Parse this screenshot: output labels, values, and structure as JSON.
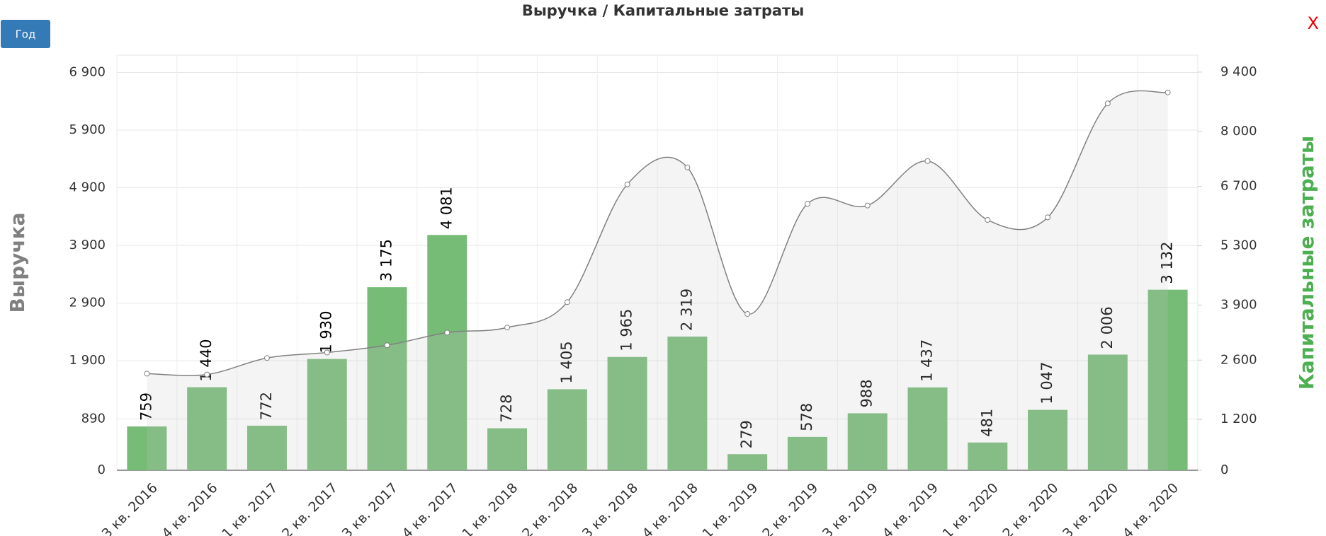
{
  "chart_data": {
    "type": "bar-line",
    "title": "Выручка / Капитальные затраты",
    "ylabel": "Выручка",
    "y2label": "Капитальные затраты",
    "button": "Год",
    "close": "X",
    "categories": [
      "3 кв. 2016",
      "4 кв. 2016",
      "1 кв. 2017",
      "2 кв. 2017",
      "3 кв. 2017",
      "4 кв. 2017",
      "1 кв. 2018",
      "2 кв. 2018",
      "3 кв. 2018",
      "4 кв. 2018",
      "1 кв. 2019",
      "2 кв. 2019",
      "3 кв. 2019",
      "4 кв. 2019",
      "1 кв. 2020",
      "2 кв. 2020",
      "3 кв. 2020",
      "4 кв. 2020"
    ],
    "series": [
      {
        "type": "bar",
        "color": "#76bb76",
        "values": [
          759,
          1440,
          772,
          1930,
          3175,
          4081,
          728,
          1405,
          1965,
          2319,
          279,
          578,
          988,
          1437,
          481,
          1047,
          2006,
          3132
        ],
        "value_labels": [
          "759",
          "1 440",
          "772",
          "1 930",
          "3 175",
          "4 081",
          "728",
          "1 405",
          "1 965",
          "2 319",
          "279",
          "578",
          "988",
          "1 437",
          "481",
          "1 047",
          "2 006",
          "3 132"
        ]
      },
      {
        "type": "line",
        "axis": "y2",
        "color": "#808080",
        "values": [
          2280,
          2260,
          2650,
          2780,
          2950,
          3250,
          3370,
          3970,
          6750,
          7150,
          3690,
          6290,
          6250,
          7300,
          5910,
          5970,
          8660,
          8920
        ]
      }
    ],
    "ylim": [
      0,
      7200
    ],
    "yticks": [
      0,
      890,
      {
        "value": 1900,
        "label": "1 900"
      },
      {
        "value": 2900,
        "label": "2 900"
      },
      {
        "value": 3900,
        "label": "3 900"
      },
      {
        "value": 4900,
        "label": "4 900"
      },
      {
        "value": 5900,
        "label": "5 900"
      },
      {
        "value": 6900,
        "label": "6 900"
      }
    ],
    "y2lim": [
      0,
      9800
    ],
    "y2ticks": [
      0,
      {
        "value": 1200,
        "label": "1 200"
      },
      {
        "value": 2600,
        "label": "2 600"
      },
      {
        "value": 3900,
        "label": "3 900"
      },
      {
        "value": 5300,
        "label": "5 300"
      },
      {
        "value": 6700,
        "label": "6 700"
      },
      {
        "value": 8000,
        "label": "8 000"
      },
      {
        "value": 9400,
        "label": "9 400"
      }
    ],
    "grid": true,
    "ylabel_color": "#808080",
    "y2label_color": "#4caf50"
  }
}
